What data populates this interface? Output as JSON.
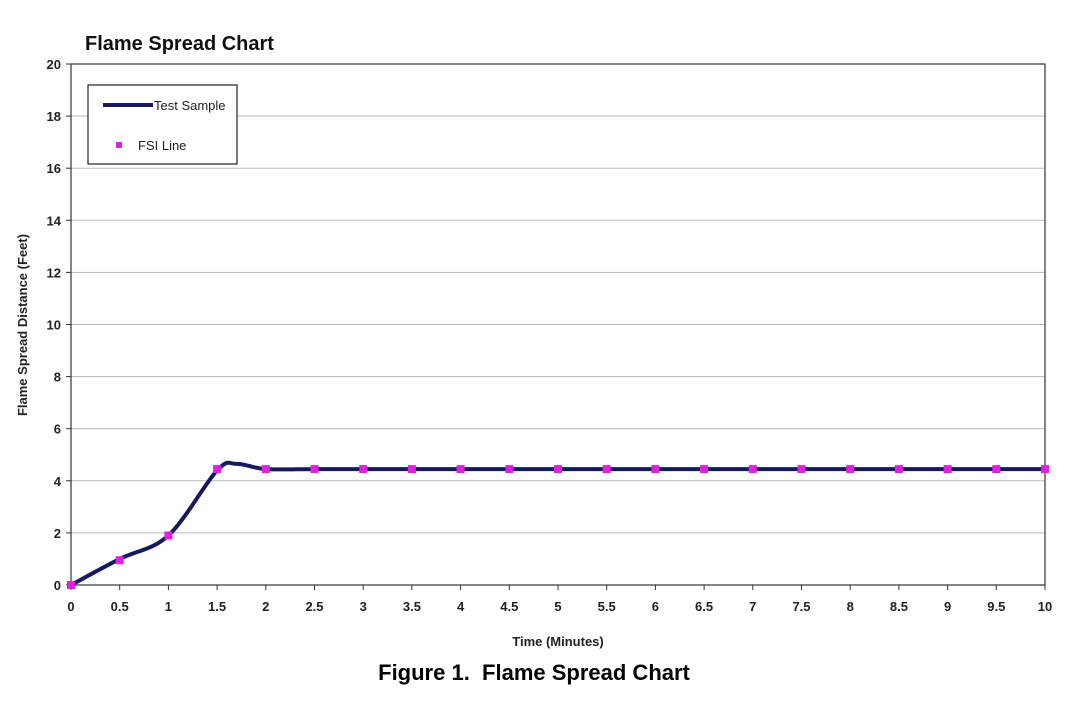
{
  "chart_data": {
    "type": "line",
    "title": "Flame Spread Chart",
    "xlabel": "Time (Minutes)",
    "ylabel": "Flame Spread Distance (Feet)",
    "xlim": [
      0,
      10
    ],
    "ylim": [
      0,
      20
    ],
    "x_ticks": [
      "0",
      "0.5",
      "1",
      "1.5",
      "2",
      "2.5",
      "3",
      "3.5",
      "4",
      "4.5",
      "5",
      "5.5",
      "6",
      "6.5",
      "7",
      "7.5",
      "8",
      "8.5",
      "9",
      "9.5",
      "10"
    ],
    "y_ticks": [
      "0",
      "2",
      "4",
      "6",
      "8",
      "10",
      "12",
      "14",
      "16",
      "18",
      "20"
    ],
    "grid": "horizontal",
    "legend_position": "top-left",
    "series": [
      {
        "name": "Test Sample",
        "style": "line",
        "color": "#141a5c",
        "x": [
          0,
          0.5,
          1,
          1.5,
          1.7,
          2,
          2.5,
          3,
          3.5,
          4,
          4.5,
          5,
          5.5,
          6,
          6.5,
          7,
          7.5,
          8,
          8.5,
          9,
          9.5,
          10
        ],
        "y": [
          0,
          1.0,
          1.9,
          4.4,
          4.65,
          4.45,
          4.45,
          4.45,
          4.45,
          4.45,
          4.45,
          4.45,
          4.45,
          4.45,
          4.45,
          4.45,
          4.45,
          4.45,
          4.45,
          4.45,
          4.45,
          4.45
        ]
      },
      {
        "name": "FSI Line",
        "style": "markers",
        "color": "#e020e0",
        "x": [
          0,
          0.5,
          1,
          1.5,
          2,
          2.5,
          3,
          3.5,
          4,
          4.5,
          5,
          5.5,
          6,
          6.5,
          7,
          7.5,
          8,
          8.5,
          9,
          9.5,
          10
        ],
        "y": [
          0,
          0.95,
          1.9,
          4.45,
          4.45,
          4.45,
          4.45,
          4.45,
          4.45,
          4.45,
          4.45,
          4.45,
          4.45,
          4.45,
          4.45,
          4.45,
          4.45,
          4.45,
          4.45,
          4.45,
          4.45
        ]
      }
    ]
  },
  "caption": "Figure 1.  Flame Spread Chart"
}
